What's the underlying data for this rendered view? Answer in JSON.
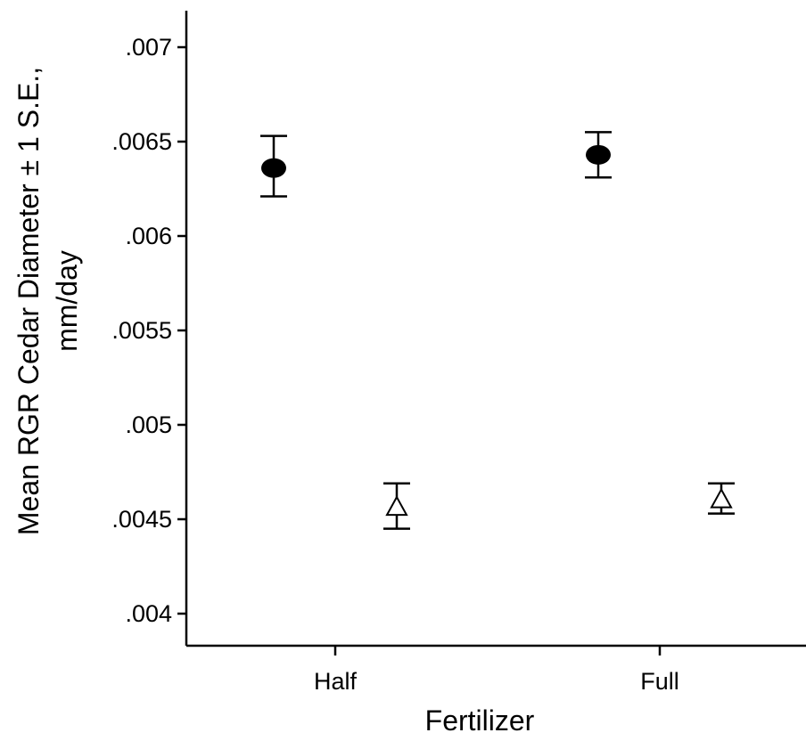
{
  "chart_data": {
    "type": "scatter",
    "title": "",
    "xlabel": "Fertilizer",
    "ylabel_lines": [
      "Mean RGR Cedar Diameter ± 1 S.E.,",
      "mm/day"
    ],
    "categories": [
      "Half",
      "Full"
    ],
    "ylim": [
      0.00384,
      0.00719
    ],
    "y_ticks": [
      0.004,
      0.0045,
      0.005,
      0.0055,
      0.006,
      0.0065,
      0.007
    ],
    "y_tick_labels": [
      ".004",
      ".0045",
      ".005",
      ".0055",
      ".006",
      ".0065",
      ".007"
    ],
    "grid": false,
    "error_bars": "± 1 S.E.",
    "series": [
      {
        "marker": "filled-circle",
        "color": "#000000",
        "offset": -0.5,
        "points": [
          {
            "category": "Half",
            "mean": 0.00636,
            "lower": 0.00621,
            "upper": 0.00653
          },
          {
            "category": "Full",
            "mean": 0.00643,
            "lower": 0.00631,
            "upper": 0.00655
          }
        ]
      },
      {
        "marker": "open-triangle",
        "color": "#000000",
        "offset": 0.5,
        "points": [
          {
            "category": "Half",
            "mean": 0.00457,
            "lower": 0.00445,
            "upper": 0.00469
          },
          {
            "category": "Full",
            "mean": 0.00461,
            "lower": 0.00453,
            "upper": 0.00469
          }
        ]
      }
    ]
  }
}
